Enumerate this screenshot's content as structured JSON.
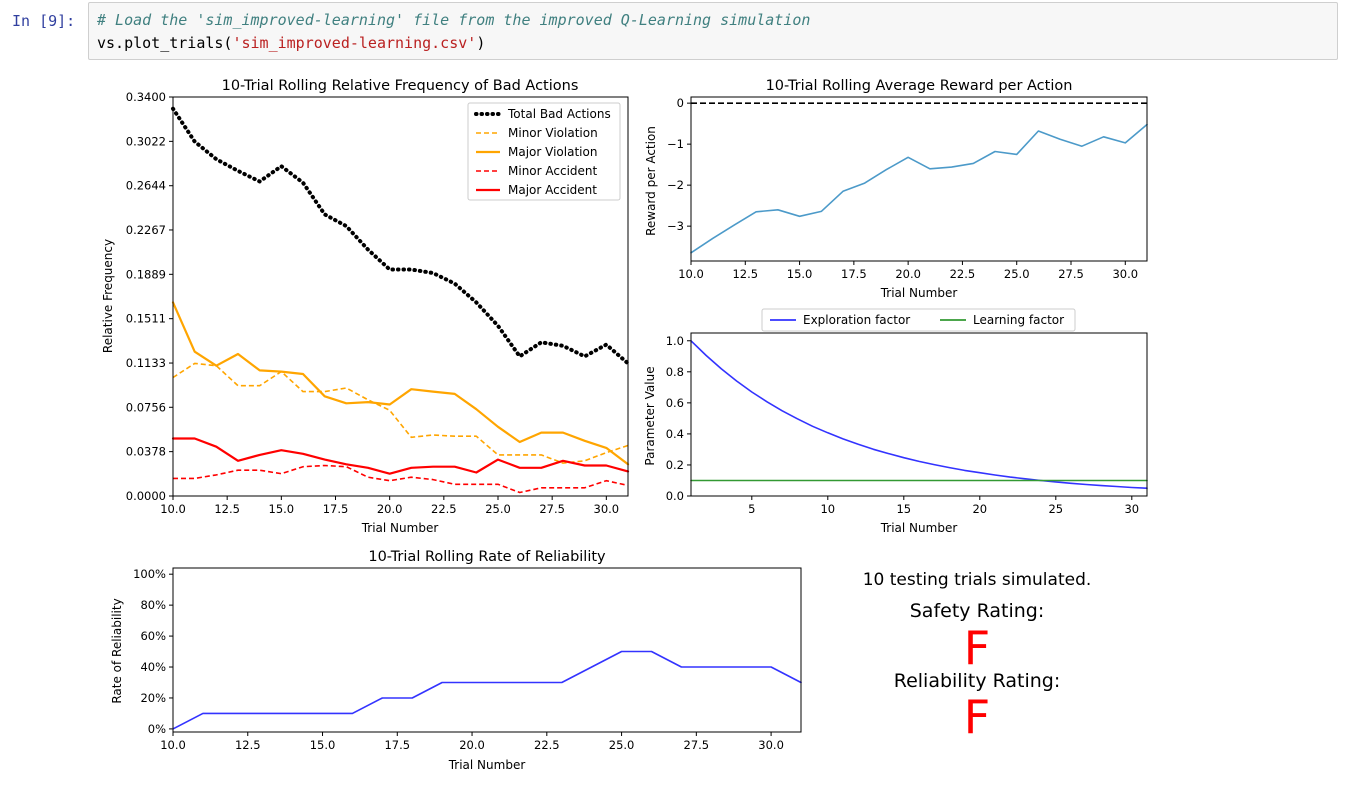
{
  "cell": {
    "prompt": "In [9]:",
    "comment": "# Load the 'sim_improved-learning' file from the improved Q-Learning simulation",
    "code_prefix": "vs.plot_trials(",
    "code_string": "'sim_improved-learning.csv'",
    "code_suffix": ")"
  },
  "colors": {
    "total": "#000000",
    "minor_violation": "#ffa500",
    "major_violation": "#ffa500",
    "minor_accident": "#ff0000",
    "major_accident": "#ff0000",
    "reward": "#4c9ac9",
    "exploration": "#3333ff",
    "learning": "#339933",
    "reliability": "#3333ff",
    "rating": "#ff0000"
  },
  "chart_data": [
    {
      "id": "bad_actions",
      "type": "line",
      "title": "10-Trial Rolling Relative Frequency of Bad Actions",
      "xlabel": "Trial Number",
      "ylabel": "Relative Frequency",
      "xlim": [
        10,
        31
      ],
      "ylim": [
        0,
        0.34
      ],
      "xticks": [
        "10.0",
        "12.5",
        "15.0",
        "17.5",
        "20.0",
        "22.5",
        "25.0",
        "27.5",
        "30.0"
      ],
      "yticks": [
        "0.0000",
        "0.0378",
        "0.0756",
        "0.1133",
        "0.1511",
        "0.1889",
        "0.2267",
        "0.2644",
        "0.3022",
        "0.3400"
      ],
      "legend_position": "top-right",
      "x": [
        10,
        11,
        12,
        13,
        14,
        15,
        16,
        17,
        18,
        19,
        20,
        21,
        22,
        23,
        24,
        25,
        26,
        27,
        28,
        29,
        30,
        31
      ],
      "series": [
        {
          "name": "Total Bad Actions",
          "style": "dotted",
          "values": [
            0.33,
            0.302,
            0.287,
            0.277,
            0.268,
            0.281,
            0.267,
            0.24,
            0.23,
            0.21,
            0.193,
            0.193,
            0.19,
            0.181,
            0.165,
            0.145,
            0.119,
            0.131,
            0.128,
            0.119,
            0.129,
            0.113
          ]
        },
        {
          "name": "Minor Violation",
          "style": "dashed",
          "values": [
            0.101,
            0.113,
            0.111,
            0.094,
            0.094,
            0.106,
            0.089,
            0.089,
            0.092,
            0.082,
            0.073,
            0.05,
            0.052,
            0.051,
            0.051,
            0.035,
            0.035,
            0.035,
            0.028,
            0.03,
            0.037,
            0.043
          ]
        },
        {
          "name": "Major Violation",
          "style": "solid",
          "values": [
            0.165,
            0.123,
            0.111,
            0.121,
            0.107,
            0.106,
            0.104,
            0.085,
            0.079,
            0.08,
            0.078,
            0.091,
            0.089,
            0.087,
            0.074,
            0.059,
            0.046,
            0.054,
            0.054,
            0.047,
            0.041,
            0.027
          ]
        },
        {
          "name": "Minor Accident",
          "style": "dashed",
          "values": [
            0.015,
            0.015,
            0.018,
            0.022,
            0.022,
            0.019,
            0.025,
            0.026,
            0.025,
            0.016,
            0.013,
            0.016,
            0.014,
            0.01,
            0.01,
            0.01,
            0.003,
            0.007,
            0.007,
            0.007,
            0.013,
            0.009
          ]
        },
        {
          "name": "Major Accident",
          "style": "solid",
          "values": [
            0.049,
            0.049,
            0.042,
            0.03,
            0.035,
            0.039,
            0.036,
            0.031,
            0.027,
            0.024,
            0.019,
            0.024,
            0.025,
            0.025,
            0.02,
            0.031,
            0.024,
            0.024,
            0.03,
            0.026,
            0.026,
            0.021
          ]
        }
      ]
    },
    {
      "id": "reward",
      "type": "line",
      "title": "10-Trial Rolling Average Reward per Action",
      "xlabel": "Trial Number",
      "ylabel": "Reward per Action",
      "xlim": [
        10,
        31
      ],
      "ylim": [
        -3.85,
        0.15
      ],
      "xticks": [
        "10.0",
        "12.5",
        "15.0",
        "17.5",
        "20.0",
        "22.5",
        "25.0",
        "27.5",
        "30.0"
      ],
      "yticks": [
        "0",
        "−1",
        "−2",
        "−3"
      ],
      "reference_line": 0,
      "x": [
        10,
        11,
        12,
        13,
        14,
        15,
        16,
        17,
        18,
        19,
        20,
        21,
        22,
        23,
        24,
        25,
        26,
        27,
        28,
        29,
        30,
        31
      ],
      "series": [
        {
          "values": [
            -3.65,
            -3.3,
            -2.97,
            -2.65,
            -2.6,
            -2.76,
            -2.64,
            -2.15,
            -1.95,
            -1.62,
            -1.32,
            -1.6,
            -1.56,
            -1.47,
            -1.18,
            -1.25,
            -0.68,
            -0.88,
            -1.05,
            -0.82,
            -0.97,
            -0.52
          ]
        }
      ]
    },
    {
      "id": "parameters",
      "type": "line",
      "xlabel": "Trial Number",
      "ylabel": "Parameter Value",
      "xlim": [
        1,
        31
      ],
      "ylim": [
        0,
        1.05
      ],
      "xticks": [
        "5",
        "10",
        "15",
        "20",
        "25",
        "30"
      ],
      "yticks": [
        "0.0",
        "0.2",
        "0.4",
        "0.6",
        "0.8",
        "1.0"
      ],
      "legend_position": "top",
      "x": [
        1,
        2,
        3,
        4,
        5,
        6,
        7,
        8,
        9,
        10,
        11,
        12,
        13,
        14,
        15,
        16,
        17,
        18,
        19,
        20,
        21,
        22,
        23,
        24,
        25,
        26,
        27,
        28,
        29,
        30,
        31
      ],
      "series": [
        {
          "name": "Exploration factor",
          "values": [
            1.0,
            0.905,
            0.819,
            0.741,
            0.67,
            0.607,
            0.549,
            0.497,
            0.449,
            0.407,
            0.368,
            0.333,
            0.301,
            0.273,
            0.247,
            0.223,
            0.202,
            0.183,
            0.165,
            0.15,
            0.135,
            0.122,
            0.111,
            0.1,
            0.091,
            0.082,
            0.074,
            0.067,
            0.061,
            0.055,
            0.05
          ]
        },
        {
          "name": "Learning factor",
          "values": [
            0.1,
            0.1,
            0.1,
            0.1,
            0.1,
            0.1,
            0.1,
            0.1,
            0.1,
            0.1,
            0.1,
            0.1,
            0.1,
            0.1,
            0.1,
            0.1,
            0.1,
            0.1,
            0.1,
            0.1,
            0.1,
            0.1,
            0.1,
            0.1,
            0.1,
            0.1,
            0.1,
            0.1,
            0.1,
            0.1,
            0.1
          ]
        }
      ]
    },
    {
      "id": "reliability",
      "type": "line",
      "title": "10-Trial Rolling Rate of Reliability",
      "xlabel": "Trial Number",
      "ylabel": "Rate of Reliability",
      "xlim": [
        10,
        31
      ],
      "ylim": [
        -2,
        104
      ],
      "xticks": [
        "10.0",
        "12.5",
        "15.0",
        "17.5",
        "20.0",
        "22.5",
        "25.0",
        "27.5",
        "30.0"
      ],
      "yticks": [
        "0%",
        "20%",
        "40%",
        "60%",
        "80%",
        "100%"
      ],
      "x": [
        10,
        11,
        12,
        13,
        14,
        15,
        16,
        17,
        18,
        19,
        20,
        21,
        22,
        23,
        24,
        25,
        26,
        27,
        28,
        29,
        30,
        31
      ],
      "series": [
        {
          "values": [
            0,
            10,
            10,
            10,
            10,
            10,
            10,
            20,
            20,
            30,
            30,
            30,
            30,
            30,
            40,
            50,
            50,
            40,
            40,
            40,
            40,
            30
          ]
        }
      ]
    }
  ],
  "summary": {
    "trials_text": "10 testing trials simulated.",
    "safety_label": "Safety Rating:",
    "safety_grade": "F",
    "reliability_label": "Reliability Rating:",
    "reliability_grade": "F"
  }
}
